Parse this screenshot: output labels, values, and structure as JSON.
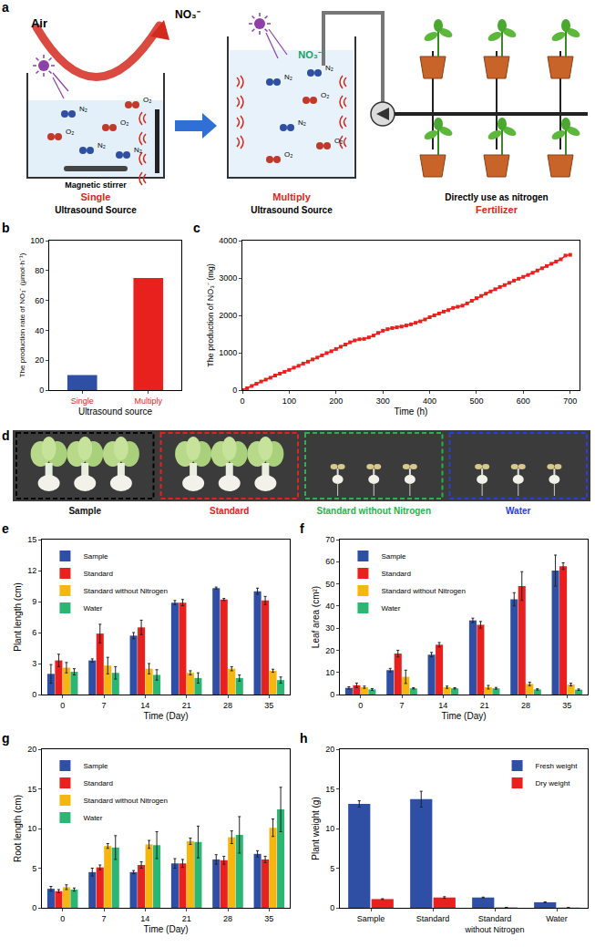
{
  "diagram": {
    "panel": "a",
    "air": "Air",
    "product": "NO₃⁻",
    "gases": [
      "N₂",
      "O₂"
    ],
    "stirrer": "Magnetic stirrer",
    "single": {
      "title": "Single",
      "subtitle": "Ultrasound Source"
    },
    "multiply": {
      "title": "Multiply",
      "subtitle": "Ultrasound Source"
    },
    "use": {
      "title": "Directly use as nitrogen",
      "subtitle": "Fertilizer"
    }
  },
  "photo": {
    "panel": "d",
    "groups": [
      {
        "name": "Sample",
        "color": "#111111"
      },
      {
        "name": "Standard",
        "color": "#e8201e"
      },
      {
        "name": "Standard without Nitrogen",
        "color": "#2bb24c"
      },
      {
        "name": "Water",
        "color": "#2a3fd6"
      }
    ]
  },
  "chart_data": [
    {
      "panel": "b",
      "type": "bar",
      "x_label": "Ultrasound source",
      "y_label": "The production rate of NO₃⁻ (μmol·h⁻¹)",
      "categories": [
        "Single",
        "Multiply"
      ],
      "values": [
        10,
        75
      ],
      "colors": [
        "#2e4fa3",
        "#e8201e"
      ],
      "ylim": [
        0,
        100
      ],
      "yticks": [
        0,
        20,
        40,
        60,
        80,
        100
      ],
      "grid": false
    },
    {
      "panel": "c",
      "type": "line",
      "x_label": "Time (h)",
      "y_label": "The production of NO₃⁻ (mg)",
      "x": [
        0,
        10,
        20,
        30,
        40,
        50,
        60,
        70,
        80,
        90,
        100,
        110,
        120,
        130,
        140,
        150,
        160,
        170,
        180,
        190,
        200,
        210,
        220,
        230,
        240,
        250,
        260,
        270,
        280,
        290,
        300,
        310,
        320,
        330,
        340,
        350,
        360,
        370,
        380,
        390,
        400,
        410,
        420,
        430,
        440,
        450,
        460,
        470,
        480,
        490,
        500,
        510,
        520,
        530,
        540,
        550,
        560,
        570,
        580,
        590,
        600,
        610,
        620,
        630,
        640,
        650,
        660,
        670,
        680,
        690,
        700
      ],
      "values": [
        0,
        50,
        110,
        170,
        230,
        280,
        330,
        390,
        440,
        490,
        540,
        600,
        650,
        710,
        760,
        820,
        870,
        930,
        990,
        1040,
        1100,
        1160,
        1220,
        1280,
        1330,
        1360,
        1370,
        1410,
        1460,
        1530,
        1590,
        1630,
        1660,
        1680,
        1700,
        1730,
        1760,
        1800,
        1840,
        1890,
        1950,
        2000,
        2050,
        2100,
        2140,
        2200,
        2230,
        2260,
        2320,
        2390,
        2460,
        2520,
        2580,
        2640,
        2700,
        2760,
        2810,
        2870,
        2930,
        2980,
        3030,
        3080,
        3140,
        3200,
        3260,
        3320,
        3380,
        3440,
        3500,
        3600,
        3620
      ],
      "color": "#e8201e",
      "marker": "square",
      "xlim": [
        0,
        720
      ],
      "xticks": [
        0,
        100,
        200,
        300,
        400,
        500,
        600,
        700
      ],
      "ylim": [
        0,
        4000
      ],
      "yticks": [
        0,
        1000,
        2000,
        3000,
        4000
      ],
      "grid": false
    },
    {
      "panel": "e",
      "type": "bar",
      "x_label": "Time (Day)",
      "y_label": "Plant length (cm)",
      "categories": [
        "0",
        "7",
        "14",
        "21",
        "28",
        "35"
      ],
      "series": [
        {
          "name": "Sample",
          "color": "#2e4fa3",
          "values": [
            2.0,
            3.3,
            5.7,
            8.9,
            10.3,
            10.0
          ],
          "errors": [
            0.9,
            0.15,
            0.3,
            0.2,
            0.1,
            0.3
          ]
        },
        {
          "name": "Standard",
          "color": "#e8201e",
          "values": [
            3.3,
            5.9,
            6.5,
            8.9,
            9.2,
            9.1
          ],
          "errors": [
            0.6,
            0.9,
            0.7,
            0.3,
            0.1,
            0.4
          ]
        },
        {
          "name": "Standard without Nitrogen",
          "color": "#f5b70f",
          "values": [
            2.6,
            2.8,
            2.5,
            2.1,
            2.5,
            2.3
          ],
          "errors": [
            0.5,
            0.8,
            0.5,
            0.2,
            0.2,
            0.15
          ]
        },
        {
          "name": "Water",
          "color": "#2bb673",
          "values": [
            2.2,
            2.1,
            1.9,
            1.6,
            1.6,
            1.4
          ],
          "errors": [
            0.3,
            0.6,
            0.5,
            0.5,
            0.3,
            0.3
          ]
        }
      ],
      "ylim": [
        0,
        15
      ],
      "yticks": [
        0,
        3,
        6,
        9,
        12,
        15
      ],
      "legend": "top-left",
      "grid": false
    },
    {
      "panel": "f",
      "type": "bar",
      "x_label": "Time (Day)",
      "y_label": "Leaf area (cm²)",
      "categories": [
        "0",
        "7",
        "14",
        "21",
        "28",
        "35"
      ],
      "series": [
        {
          "name": "Sample",
          "color": "#2e4fa3",
          "values": [
            3.0,
            11.0,
            18.0,
            33.5,
            43.0,
            56.0
          ],
          "errors": [
            0.5,
            0.8,
            1.0,
            1.0,
            3.0,
            7.0
          ]
        },
        {
          "name": "Standard",
          "color": "#e8201e",
          "values": [
            4.2,
            18.5,
            22.5,
            31.5,
            49.0,
            58.0
          ],
          "errors": [
            1.0,
            1.5,
            1.0,
            1.5,
            6.5,
            1.5
          ]
        },
        {
          "name": "Standard without Nitrogen",
          "color": "#f5b70f",
          "values": [
            3.3,
            8.0,
            3.3,
            3.3,
            4.8,
            4.5
          ],
          "errors": [
            0.5,
            3.0,
            0.5,
            0.8,
            0.8,
            0.6
          ]
        },
        {
          "name": "Water",
          "color": "#2bb673",
          "values": [
            2.3,
            2.8,
            2.8,
            2.8,
            2.3,
            2.2
          ],
          "errors": [
            0.4,
            0.3,
            0.3,
            0.4,
            0.3,
            0.3
          ]
        }
      ],
      "ylim": [
        0,
        70
      ],
      "yticks": [
        0,
        10,
        20,
        30,
        40,
        50,
        60,
        70
      ],
      "legend": "top-left",
      "grid": false
    },
    {
      "panel": "g",
      "type": "bar",
      "x_label": "Time (Day)",
      "y_label": "Root length (cm)",
      "categories": [
        "0",
        "7",
        "14",
        "21",
        "28",
        "35"
      ],
      "series": [
        {
          "name": "Sample",
          "color": "#2e4fa3",
          "values": [
            2.4,
            4.5,
            4.5,
            5.6,
            6.1,
            6.8
          ],
          "errors": [
            0.3,
            0.5,
            0.2,
            0.6,
            0.6,
            0.4
          ]
        },
        {
          "name": "Standard",
          "color": "#e8201e",
          "values": [
            2.1,
            5.1,
            5.4,
            5.6,
            6.0,
            6.1
          ],
          "errors": [
            0.2,
            0.3,
            0.4,
            0.5,
            0.5,
            0.4
          ]
        },
        {
          "name": "Standard without Nitrogen",
          "color": "#f5b70f",
          "values": [
            2.6,
            7.8,
            8.0,
            8.4,
            8.9,
            10.1
          ],
          "errors": [
            0.3,
            0.3,
            0.5,
            0.4,
            0.8,
            1.1
          ]
        },
        {
          "name": "Water",
          "color": "#2bb673",
          "values": [
            2.3,
            7.6,
            7.9,
            8.3,
            9.2,
            12.4
          ],
          "errors": [
            0.2,
            1.5,
            1.7,
            2.0,
            2.3,
            2.8
          ]
        }
      ],
      "ylim": [
        0,
        20
      ],
      "yticks": [
        0,
        5,
        10,
        15,
        20
      ],
      "legend": "top-left",
      "grid": false
    },
    {
      "panel": "h",
      "type": "bar",
      "y_label": "Plant weight (g)",
      "categories": [
        "Sample",
        "Standard",
        "Standard without Nitrogen",
        "Water"
      ],
      "series": [
        {
          "name": "Fresh weight",
          "color": "#2e4fa3",
          "values": [
            13.1,
            13.7,
            1.3,
            0.7
          ],
          "errors": [
            0.4,
            1.0,
            0.05,
            0.05
          ]
        },
        {
          "name": "Dry weight",
          "color": "#e8201e",
          "values": [
            1.1,
            1.3,
            0.05,
            0.03
          ],
          "errors": [
            0.05,
            0.1,
            0.0,
            0.0
          ]
        }
      ],
      "ylim": [
        0,
        20
      ],
      "yticks": [
        0,
        5,
        10,
        15,
        20
      ],
      "legend": "top-right",
      "grid": false
    }
  ]
}
